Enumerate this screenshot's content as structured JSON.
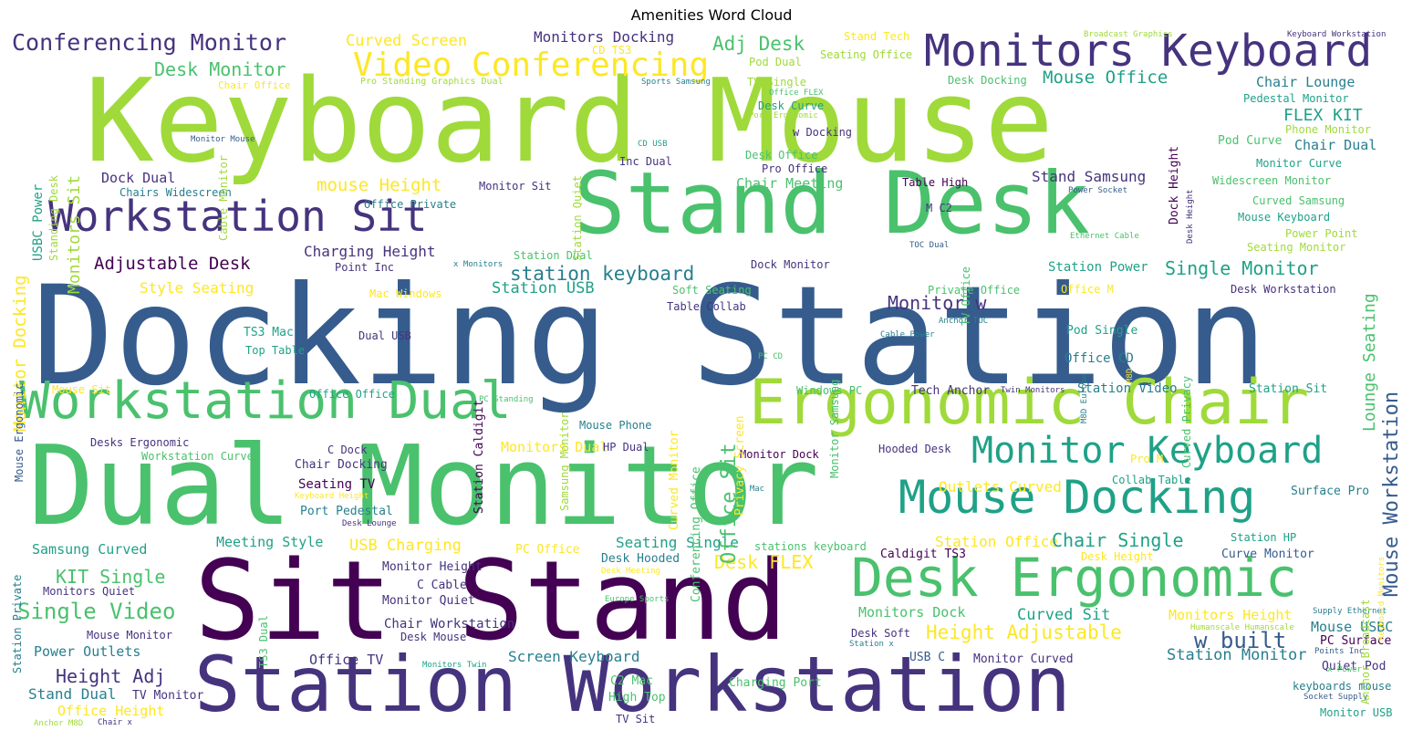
{
  "title": "Amenities Word Cloud",
  "palette": {
    "purple_dark": "#440154",
    "indigo": "#46337e",
    "blue_dark": "#365c8d",
    "blue": "#277f8e",
    "teal": "#1fa187",
    "green": "#4ac16d",
    "lime": "#9fda3a",
    "yellow": "#fde725"
  },
  "words": [
    {
      "text": "Keyboard Mouse",
      "color": "#9fda3a"
    },
    {
      "text": "Docking Station",
      "color": "#365c8d"
    },
    {
      "text": "Dual Monitor",
      "color": "#4ac16d"
    },
    {
      "text": "Sit Stand",
      "color": "#440154"
    },
    {
      "text": "Stand Desk",
      "color": "#4ac16d"
    },
    {
      "text": "Station Workstation",
      "color": "#46337e"
    },
    {
      "text": "Workstation Sit",
      "color": "#46337e"
    },
    {
      "text": "Workstation Dual",
      "color": "#4ac16d"
    },
    {
      "text": "Ergonomic Chair",
      "color": "#9fda3a"
    },
    {
      "text": "Desk Ergonomic",
      "color": "#4ac16d"
    },
    {
      "text": "Mouse Docking",
      "color": "#1fa187"
    },
    {
      "text": "Monitors Keyboard",
      "color": "#46337e"
    },
    {
      "text": "Monitor Keyboard",
      "color": "#1fa187"
    },
    {
      "text": "Video Conferencing",
      "color": "#fde725"
    },
    {
      "text": "Conferencing Monitor",
      "color": "#46337e"
    },
    {
      "text": "Curved Screen",
      "color": "#fde725"
    },
    {
      "text": "Monitors Docking",
      "color": "#46337e"
    },
    {
      "text": "Adj Desk",
      "color": "#4ac16d"
    },
    {
      "text": "Desk Monitor",
      "color": "#4ac16d"
    },
    {
      "text": "CD TS3",
      "color": "#fde725"
    },
    {
      "text": "Pod Dual",
      "color": "#9fda3a"
    },
    {
      "text": "Stand Tech",
      "color": "#fde725"
    },
    {
      "text": "Seating Office",
      "color": "#9fda3a"
    },
    {
      "text": "Broadcast Graphics",
      "color": "#9fda3a"
    },
    {
      "text": "Keyboard Workstation",
      "color": "#46337e"
    },
    {
      "text": "Chair Office",
      "color": "#fde725"
    },
    {
      "text": "Pro Standing Graphics Dual",
      "color": "#9fda3a"
    },
    {
      "text": "Sports Samsung",
      "color": "#277f8e"
    },
    {
      "text": "TV Single",
      "color": "#9fda3a"
    },
    {
      "text": "Office FLEX",
      "color": "#4ac16d"
    },
    {
      "text": "Port Ergonomic",
      "color": "#9fda3a"
    },
    {
      "text": "Desk Curve",
      "color": "#1fa187"
    },
    {
      "text": "w Docking",
      "color": "#46337e"
    },
    {
      "text": "Desk Docking",
      "color": "#4ac16d"
    },
    {
      "text": "Mouse Office",
      "color": "#1fa187"
    },
    {
      "text": "Chair Lounge",
      "color": "#277f8e"
    },
    {
      "text": "Pedestal Monitor",
      "color": "#1fa187"
    },
    {
      "text": "FLEX KIT",
      "color": "#1fa187"
    },
    {
      "text": "Phone Monitor",
      "color": "#9fda3a"
    },
    {
      "text": "Pod Curve",
      "color": "#4ac16d"
    },
    {
      "text": "Chair Dual",
      "color": "#277f8e"
    },
    {
      "text": "Monitor Curve",
      "color": "#1fa187"
    },
    {
      "text": "Widescreen Monitor",
      "color": "#4ac16d"
    },
    {
      "text": "Curved Samsung",
      "color": "#4ac16d"
    },
    {
      "text": "Mouse Keyboard",
      "color": "#1fa187"
    },
    {
      "text": "Power Point",
      "color": "#9fda3a"
    },
    {
      "text": "Seating Monitor",
      "color": "#9fda3a"
    },
    {
      "text": "Monitor Mouse",
      "color": "#365c8d"
    },
    {
      "text": "CD USB",
      "color": "#1fa187"
    },
    {
      "text": "Inc Dual",
      "color": "#46337e"
    },
    {
      "text": "Desk Office",
      "color": "#4ac16d"
    },
    {
      "text": "Pro Office",
      "color": "#46337e"
    },
    {
      "text": "Table High",
      "color": "#440154"
    },
    {
      "text": "Stand Samsung",
      "color": "#46337e"
    },
    {
      "text": "Power Socket",
      "color": "#365c8d"
    },
    {
      "text": "Dock Dual",
      "color": "#46337e"
    },
    {
      "text": "Chairs Widescreen",
      "color": "#277f8e"
    },
    {
      "text": "mouse Height",
      "color": "#fde725"
    },
    {
      "text": "Monitor Sit",
      "color": "#46337e"
    },
    {
      "text": "Chair Meeting",
      "color": "#4ac16d"
    },
    {
      "text": "Office Private",
      "color": "#277f8e"
    },
    {
      "text": "M C2",
      "color": "#46337e"
    },
    {
      "text": "Charging Height",
      "color": "#46337e"
    },
    {
      "text": "Station Dual",
      "color": "#4ac16d"
    },
    {
      "text": "Ethernet Cable",
      "color": "#4ac16d"
    },
    {
      "text": "Adjustable Desk",
      "color": "#440154"
    },
    {
      "text": "Point Inc",
      "color": "#46337e"
    },
    {
      "text": "x Monitors",
      "color": "#277f8e"
    },
    {
      "text": "TOC Dual",
      "color": "#365c8d"
    },
    {
      "text": "station keyboard",
      "color": "#277f8e"
    },
    {
      "text": "Dock Monitor",
      "color": "#46337e"
    },
    {
      "text": "Station Power",
      "color": "#1fa187"
    },
    {
      "text": "Single Monitor",
      "color": "#1fa187"
    },
    {
      "text": "Style Seating",
      "color": "#fde725"
    },
    {
      "text": "Station USB",
      "color": "#1fa187"
    },
    {
      "text": "Monitor w",
      "color": "#46337e"
    },
    {
      "text": "Mac Windows",
      "color": "#fde725"
    },
    {
      "text": "Soft Seating",
      "color": "#4ac16d"
    },
    {
      "text": "Private Office",
      "color": "#4ac16d"
    },
    {
      "text": "Office M",
      "color": "#fde725"
    },
    {
      "text": "Desk Workstation",
      "color": "#46337e"
    },
    {
      "text": "Table Collab",
      "color": "#46337e"
    },
    {
      "text": "Anchor TOC",
      "color": "#277f8e"
    },
    {
      "text": "Cable Power",
      "color": "#277f8e"
    },
    {
      "text": "Pod Single",
      "color": "#1fa187"
    },
    {
      "text": "TS3 Mac",
      "color": "#1fa187"
    },
    {
      "text": "Dual USB",
      "color": "#46337e"
    },
    {
      "text": "Top Table",
      "color": "#1fa187"
    },
    {
      "text": "Office CD",
      "color": "#277f8e"
    },
    {
      "text": "PC CD",
      "color": "#4ac16d"
    },
    {
      "text": "Windows PC",
      "color": "#4ac16d"
    },
    {
      "text": "Tech Anchor",
      "color": "#46337e"
    },
    {
      "text": "Twin Monitors",
      "color": "#46337e"
    },
    {
      "text": "Station Video",
      "color": "#277f8e"
    },
    {
      "text": "Station Sit",
      "color": "#1fa187"
    },
    {
      "text": "Mouse Sit",
      "color": "#fde725"
    },
    {
      "text": "Office Office",
      "color": "#1fa187"
    },
    {
      "text": "PC Standing",
      "color": "#4ac16d"
    },
    {
      "text": "Mouse Phone",
      "color": "#277f8e"
    },
    {
      "text": "Desks Ergonomic",
      "color": "#46337e"
    },
    {
      "text": "Workstation Curved",
      "color": "#4ac16d"
    },
    {
      "text": "C Dock",
      "color": "#46337e"
    },
    {
      "text": "Monitors Dual",
      "color": "#fde725"
    },
    {
      "text": "HP Dual",
      "color": "#46337e"
    },
    {
      "text": "Monitor Dock",
      "color": "#440154"
    },
    {
      "text": "Hooded Desk",
      "color": "#46337e"
    },
    {
      "text": "Pro M",
      "color": "#fde725"
    },
    {
      "text": "Collab Table",
      "color": "#1fa187"
    },
    {
      "text": "Chair Docking",
      "color": "#46337e"
    },
    {
      "text": "Seating TV",
      "color": "#440154"
    },
    {
      "text": "Keyboard Height",
      "color": "#fde725"
    },
    {
      "text": "Port Pedestal",
      "color": "#277f8e"
    },
    {
      "text": "Desk Lounge",
      "color": "#46337e"
    },
    {
      "text": "C Mac",
      "color": "#277f8e"
    },
    {
      "text": "Outlets Curved",
      "color": "#fde725"
    },
    {
      "text": "Station Office",
      "color": "#fde725"
    },
    {
      "text": "Surface Pro",
      "color": "#277f8e"
    },
    {
      "text": "Samsung Curved",
      "color": "#1fa187"
    },
    {
      "text": "Meeting Style",
      "color": "#1fa187"
    },
    {
      "text": "USB Charging",
      "color": "#fde725"
    },
    {
      "text": "PC Office",
      "color": "#fde725"
    },
    {
      "text": "Seating Single",
      "color": "#1fa187"
    },
    {
      "text": "stations keyboard",
      "color": "#4ac16d"
    },
    {
      "text": "Chair Single",
      "color": "#1fa187"
    },
    {
      "text": "Station HP",
      "color": "#1fa187"
    },
    {
      "text": "Desk Hooded",
      "color": "#277f8e"
    },
    {
      "text": "Desk FLEX",
      "color": "#fde725"
    },
    {
      "text": "Caldigit TS3",
      "color": "#440154"
    },
    {
      "text": "Desk Height",
      "color": "#fde725"
    },
    {
      "text": "Curve Monitor",
      "color": "#365c8d"
    },
    {
      "text": "KIT Single",
      "color": "#4ac16d"
    },
    {
      "text": "Monitor Height",
      "color": "#46337e"
    },
    {
      "text": "Desk Meeting",
      "color": "#fde725"
    },
    {
      "text": "C Cable",
      "color": "#46337e"
    },
    {
      "text": "Monitors Quiet",
      "color": "#46337e"
    },
    {
      "text": "Europe Sports",
      "color": "#4ac16d"
    },
    {
      "text": "Single Video",
      "color": "#4ac16d"
    },
    {
      "text": "Monitor Quiet",
      "color": "#46337e"
    },
    {
      "text": "Monitors Dock",
      "color": "#4ac16d"
    },
    {
      "text": "Curved Sit",
      "color": "#1fa187"
    },
    {
      "text": "Monitors Height",
      "color": "#fde725"
    },
    {
      "text": "Supply Ethernet",
      "color": "#277f8e"
    },
    {
      "text": "Humanscale Humanscale",
      "color": "#9fda3a"
    },
    {
      "text": "Chair Workstation",
      "color": "#46337e"
    },
    {
      "text": "Height Adjustable",
      "color": "#fde725"
    },
    {
      "text": "Mouse USBC",
      "color": "#277f8e"
    },
    {
      "text": "Mouse Monitor",
      "color": "#46337e"
    },
    {
      "text": "Desk Mouse",
      "color": "#46337e"
    },
    {
      "text": "Desk Soft",
      "color": "#46337e"
    },
    {
      "text": "w built",
      "color": "#365c8d"
    },
    {
      "text": "PC Surface",
      "color": "#440154"
    },
    {
      "text": "Power Outlets",
      "color": "#277f8e"
    },
    {
      "text": "Station x",
      "color": "#277f8e"
    },
    {
      "text": "Points Inc",
      "color": "#365c8d"
    },
    {
      "text": "Office TV",
      "color": "#46337e"
    },
    {
      "text": "Screen Keyboard",
      "color": "#277f8e"
    },
    {
      "text": "USB C",
      "color": "#365c8d"
    },
    {
      "text": "Monitor Curved",
      "color": "#46337e"
    },
    {
      "text": "Station Monitor",
      "color": "#277f8e"
    },
    {
      "text": "Quiet Pod",
      "color": "#46337e"
    },
    {
      "text": "Height Adj",
      "color": "#46337e"
    },
    {
      "text": "Monitors Twin",
      "color": "#1fa187"
    },
    {
      "text": "Charging Port",
      "color": "#4ac16d"
    },
    {
      "text": "x Power",
      "color": "#4ac16d"
    },
    {
      "text": "keyboards mouse",
      "color": "#277f8e"
    },
    {
      "text": "C2 Mac",
      "color": "#4ac16d"
    },
    {
      "text": "Stand Dual",
      "color": "#277f8e"
    },
    {
      "text": "TV Monitor",
      "color": "#46337e"
    },
    {
      "text": "High Top",
      "color": "#4ac16d"
    },
    {
      "text": "Socket Supply",
      "color": "#365c8d"
    },
    {
      "text": "Office Height",
      "color": "#fde725"
    },
    {
      "text": "Anchor M8D",
      "color": "#9fda3a"
    },
    {
      "text": "Chair x",
      "color": "#46337e"
    },
    {
      "text": "TV Sit",
      "color": "#46337e"
    },
    {
      "text": "Monitor USB",
      "color": "#1fa187"
    },
    {
      "text": "Monitors Sit",
      "color": "#9fda3a"
    },
    {
      "text": "Standing Desk",
      "color": "#9fda3a"
    },
    {
      "text": "USBC Power",
      "color": "#1fa187"
    },
    {
      "text": "Monitor Docking",
      "color": "#fde725"
    },
    {
      "text": "Cable Monitor",
      "color": "#9fda3a"
    },
    {
      "text": "Station Quiet",
      "color": "#9fda3a"
    },
    {
      "text": "Mouse Ergonomic",
      "color": "#365c8d"
    },
    {
      "text": "Station Caldigit",
      "color": "#440154"
    },
    {
      "text": "Monitor Samsung",
      "color": "#4ac16d"
    },
    {
      "text": "Curved Monitor",
      "color": "#fde725"
    },
    {
      "text": "Samsung Monitor",
      "color": "#9fda3a"
    },
    {
      "text": "Conferencing Office",
      "color": "#4ac16d"
    },
    {
      "text": "Office Sit",
      "color": "#4ac16d"
    },
    {
      "text": "Privacy Screen",
      "color": "#fde725"
    },
    {
      "text": "TV Office",
      "color": "#4ac16d"
    },
    {
      "text": "M8D Europe",
      "color": "#277f8e"
    },
    {
      "text": "Curved Privacy",
      "color": "#4ac16d"
    },
    {
      "text": "Dock Height",
      "color": "#440154"
    },
    {
      "text": "Desk Height",
      "color": "#46337e"
    },
    {
      "text": "Lounge Seating",
      "color": "#4ac16d"
    },
    {
      "text": "Mouse Workstation",
      "color": "#365c8d"
    },
    {
      "text": "Station Private",
      "color": "#277f8e"
    },
    {
      "text": "TS3 Dual",
      "color": "#4ac16d"
    },
    {
      "text": "Anchor Broadcast",
      "color": "#9fda3a"
    },
    {
      "text": "Keyboard Monitors",
      "color": "#fde725"
    },
    {
      "text": "M8D",
      "color": "#fde725"
    }
  ]
}
